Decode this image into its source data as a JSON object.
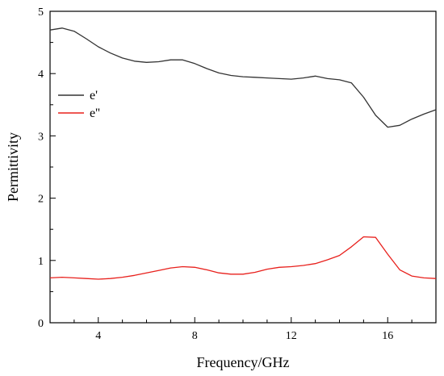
{
  "chart_data": {
    "type": "line",
    "title": "",
    "xlabel": "Frequency/GHz",
    "ylabel": "Permittivity",
    "xlim": [
      2,
      18
    ],
    "ylim": [
      0,
      5
    ],
    "x_ticks": [
      4,
      8,
      12,
      16
    ],
    "x_tick_labels": [
      "4",
      "8",
      "12",
      "16"
    ],
    "y_ticks": [
      0,
      1,
      2,
      3,
      4,
      5
    ],
    "y_tick_labels": [
      "0",
      "1",
      "2",
      "3",
      "4",
      "5"
    ],
    "grid": false,
    "legend_position": "left",
    "series": [
      {
        "name": "e'",
        "color": "#333333",
        "x": [
          2.0,
          2.5,
          3.0,
          3.5,
          4.0,
          4.5,
          5.0,
          5.5,
          6.0,
          6.5,
          7.0,
          7.5,
          8.0,
          8.5,
          9.0,
          9.5,
          10.0,
          10.5,
          11.0,
          11.5,
          12.0,
          12.5,
          13.0,
          13.5,
          14.0,
          14.5,
          15.0,
          15.5,
          16.0,
          16.5,
          17.0,
          17.5,
          18.0
        ],
        "y": [
          4.7,
          4.73,
          4.68,
          4.56,
          4.43,
          4.33,
          4.25,
          4.2,
          4.18,
          4.19,
          4.22,
          4.22,
          4.16,
          4.08,
          4.01,
          3.97,
          3.95,
          3.94,
          3.93,
          3.92,
          3.91,
          3.93,
          3.96,
          3.92,
          3.9,
          3.85,
          3.62,
          3.33,
          3.14,
          3.17,
          3.27,
          3.35,
          3.42
        ]
      },
      {
        "name": "e''",
        "color": "#e8201c",
        "x": [
          2.0,
          2.5,
          3.0,
          3.5,
          4.0,
          4.5,
          5.0,
          5.5,
          6.0,
          6.5,
          7.0,
          7.5,
          8.0,
          8.5,
          9.0,
          9.5,
          10.0,
          10.5,
          11.0,
          11.5,
          12.0,
          12.5,
          13.0,
          13.5,
          14.0,
          14.5,
          15.0,
          15.5,
          16.0,
          16.5,
          17.0,
          17.5,
          18.0
        ],
        "y": [
          0.72,
          0.73,
          0.72,
          0.71,
          0.7,
          0.71,
          0.73,
          0.76,
          0.8,
          0.84,
          0.88,
          0.9,
          0.89,
          0.85,
          0.8,
          0.78,
          0.78,
          0.81,
          0.86,
          0.89,
          0.9,
          0.92,
          0.95,
          1.01,
          1.08,
          1.22,
          1.38,
          1.37,
          1.1,
          0.85,
          0.75,
          0.72,
          0.71
        ]
      }
    ]
  }
}
